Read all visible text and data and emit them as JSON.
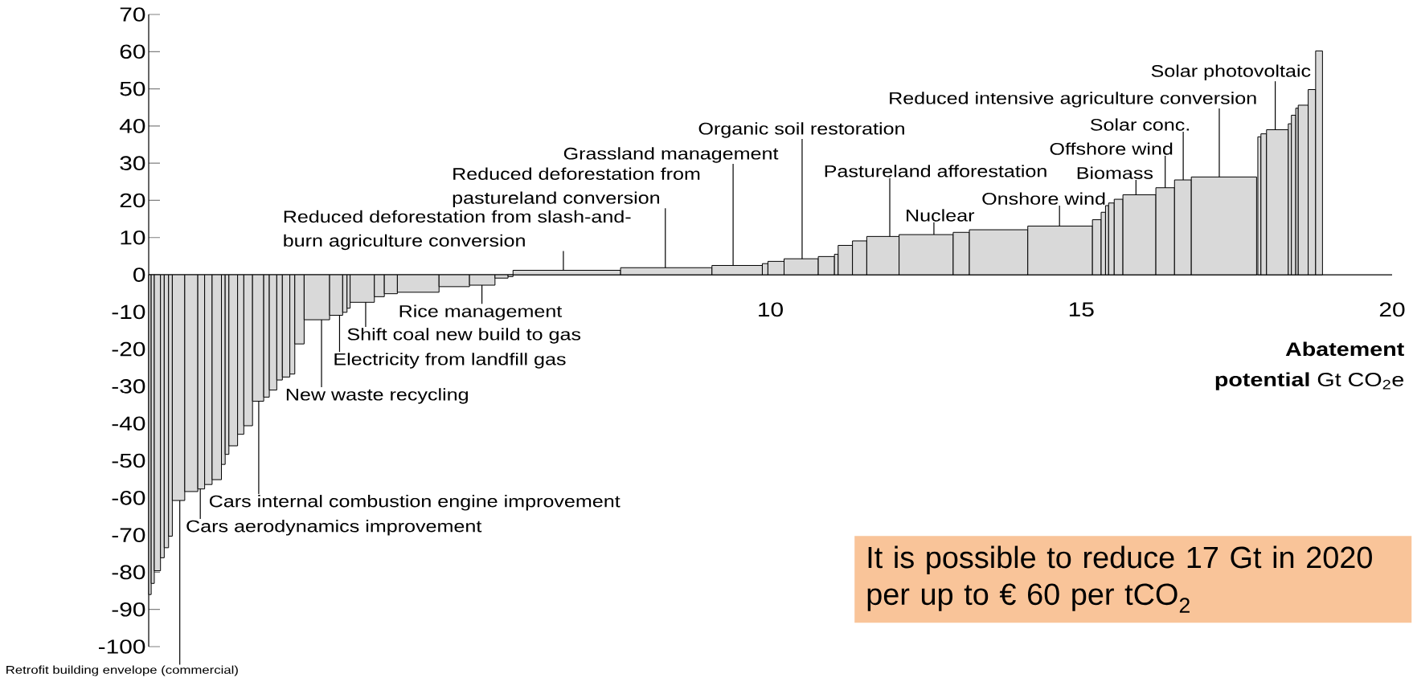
{
  "chart_data": {
    "type": "histogram",
    "color": "#d9d9d9",
    "bins": [
      0.0,
      0.04,
      0.09,
      0.19,
      0.25,
      0.32,
      0.38,
      0.58,
      0.79,
      0.9,
      1.02,
      1.17,
      1.23,
      1.29,
      1.43,
      1.53,
      1.67,
      1.85,
      1.94,
      2.06,
      2.15,
      2.27,
      2.35,
      2.5,
      2.91,
      3.12,
      3.19,
      3.24,
      3.63,
      3.79,
      4.0,
      4.67,
      5.16,
      5.57,
      5.78,
      5.86,
      7.59,
      9.06,
      9.87,
      9.96,
      10.22,
      10.77,
      11.03,
      11.09,
      11.32,
      11.55,
      12.07,
      12.94,
      13.2,
      14.14,
      15.18,
      15.32,
      15.39,
      15.44,
      15.53,
      15.67,
      16.2,
      16.5,
      16.77,
      17.82,
      17.84,
      17.89,
      17.98,
      18.33,
      18.38,
      18.45,
      18.49,
      18.65,
      18.77,
      18.88
    ],
    "values": [
      -86,
      -83,
      -79.6,
      -76.1,
      -73.4,
      -70.3,
      -60.7,
      -58.3,
      -57.6,
      -56.4,
      -55.1,
      -51.0,
      -48.3,
      -46.0,
      -42.9,
      -40.6,
      -34.0,
      -32.9,
      -31.0,
      -28.3,
      -27.5,
      -26.7,
      -18.6,
      -12.1,
      -10.9,
      -10.1,
      -9.0,
      -7.4,
      -5.9,
      -5.1,
      -4.7,
      -3.2,
      -2.8,
      -0.9,
      -0.5,
      1.2,
      1.9,
      2.5,
      3.0,
      3.6,
      4.3,
      4.9,
      5.5,
      7.9,
      9.1,
      10.3,
      10.8,
      11.4,
      12.1,
      13.1,
      14.8,
      16.8,
      18.6,
      19.3,
      20.3,
      21.5,
      23.4,
      25.5,
      26.3,
      null,
      37.1,
      37.9,
      39.0,
      40.6,
      42.9,
      44.8,
      45.6,
      49.8,
      60.2
    ],
    "xlim": [
      0,
      20
    ],
    "xticks": [
      10,
      15,
      20
    ],
    "ylim": [
      -100,
      70
    ],
    "yticks": [
      -100,
      -90,
      -80,
      -70,
      -60,
      -50,
      -40,
      -30,
      -20,
      -10,
      0,
      10,
      20,
      30,
      40,
      50,
      60,
      70
    ],
    "xlabel": "**Abatement potential** Gt CO$_{2}$e",
    "grid": false,
    "annotations": [
      {
        "text": "Retrofit building envelope (commercial)",
        "x": 0.5,
        "y": -60.7
      },
      {
        "text": "Cars aerodynamics improvement",
        "x": 0.83,
        "y": -57.6
      },
      {
        "text": "Cars internal combustion engine improvement",
        "x": 1.77,
        "y": -34.0
      },
      {
        "text": "New waste recycling",
        "x": 2.78,
        "y": -12.1
      },
      {
        "text": "Electricity from landfill gas",
        "x": 3.07,
        "y": -10.9
      },
      {
        "text": "Shift coal new build to gas",
        "x": 3.49,
        "y": -7.4
      },
      {
        "text": "Rice management",
        "x": 5.36,
        "y": -2.8
      },
      {
        "text": "Reduced deforestation from slash-and-burn agriculture conversion",
        "x": 6.67,
        "y": 1.2
      },
      {
        "text": "Reduced deforestation from pastureland conversion",
        "x": 8.31,
        "y": 1.9
      },
      {
        "text": "Grassland management",
        "x": 9.4,
        "y": 2.5
      },
      {
        "text": "Organic soil restoration",
        "x": 10.51,
        "y": 4.3
      },
      {
        "text": "Pastureland afforestation",
        "x": 11.92,
        "y": 10.3
      },
      {
        "text": "Nuclear",
        "x": 12.63,
        "y": 10.8
      },
      {
        "text": "Onshore wind",
        "x": 14.65,
        "y": 13.1
      },
      {
        "text": "Biomass",
        "x": 15.88,
        "y": 21.5
      },
      {
        "text": "Offshore wind",
        "x": 16.35,
        "y": 23.4
      },
      {
        "text": "Solar conc.",
        "x": 16.64,
        "y": 25.5
      },
      {
        "text": "Reduced intensive agriculture conversion",
        "x": 17.22,
        "y": 26.3
      },
      {
        "text": "Solar photovoltaic",
        "x": 18.12,
        "y": 39.0
      },
      "It is possible to reduce 17 Gt in 2020 per up to € 60 per tCO$_{2}$"
    ]
  }
}
